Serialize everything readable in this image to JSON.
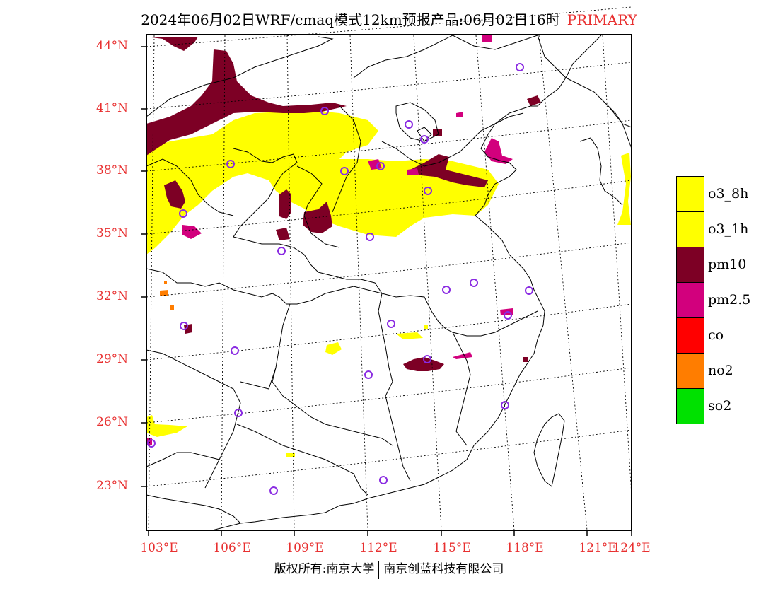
{
  "title": {
    "main": "2024年06月02日WRF/cmaq模式12km预报产品:06月02日16时",
    "tag": "PRIMARY"
  },
  "axes": {
    "lat_labels": [
      "44°N",
      "41°N",
      "38°N",
      "35°N",
      "32°N",
      "29°N",
      "26°N",
      "23°N"
    ],
    "lon_labels": [
      "103°E",
      "106°E",
      "109°E",
      "112°E",
      "115°E",
      "118°E",
      "121°E",
      "124°E"
    ]
  },
  "legend": [
    {
      "label": "o3_8h",
      "color": "#ffff00"
    },
    {
      "label": "o3_1h",
      "color": "#ffff00"
    },
    {
      "label": "pm10",
      "color": "#7d0025"
    },
    {
      "label": "pm2.5",
      "color": "#d2007d"
    },
    {
      "label": "co",
      "color": "#ff0000"
    },
    {
      "label": "no2",
      "color": "#ff7d00"
    },
    {
      "label": "so2",
      "color": "#00e100"
    }
  ],
  "footer": {
    "left": "版权所有:南京大学",
    "right": "南京创蓝科技有限公司"
  },
  "colors": {
    "label_red": "#e83030",
    "station_circle": "#8a2be2"
  }
}
